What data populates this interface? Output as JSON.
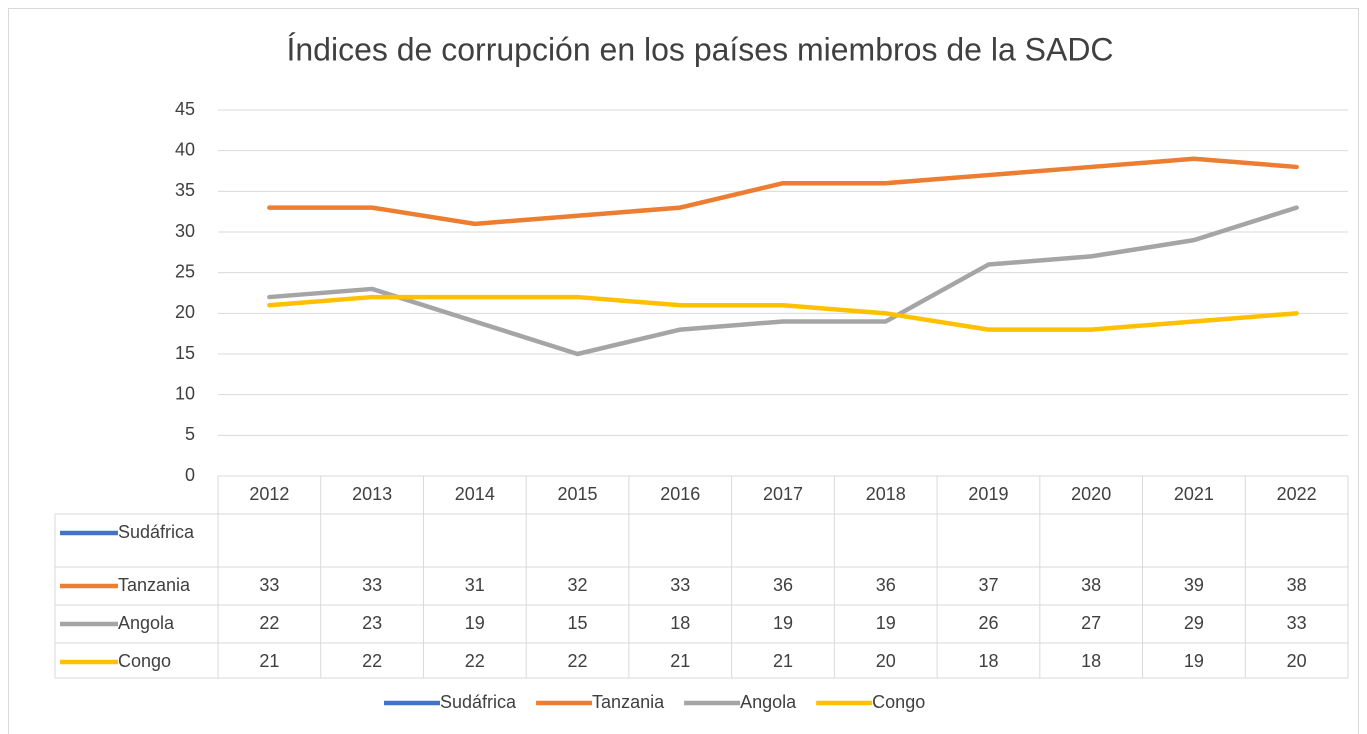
{
  "chart_data": {
    "type": "line",
    "title": "Índices de corrupción en los países miembros de la SADC",
    "categories": [
      "2012",
      "2013",
      "2014",
      "2015",
      "2016",
      "2017",
      "2018",
      "2019",
      "2020",
      "2021",
      "2022"
    ],
    "series": [
      {
        "name": "Sudáfrica",
        "color": "#4472c4",
        "values": [
          null,
          null,
          null,
          null,
          null,
          null,
          null,
          null,
          null,
          null,
          null
        ]
      },
      {
        "name": "Tanzania",
        "color": "#ed7d31",
        "values": [
          33,
          33,
          31,
          32,
          33,
          36,
          36,
          37,
          38,
          39,
          38
        ]
      },
      {
        "name": "Angola",
        "color": "#a5a5a5",
        "values": [
          22,
          23,
          19,
          15,
          18,
          19,
          19,
          26,
          27,
          29,
          33
        ]
      },
      {
        "name": "Congo",
        "color": "#ffc000",
        "values": [
          21,
          22,
          22,
          22,
          21,
          21,
          20,
          18,
          18,
          19,
          20
        ]
      }
    ],
    "ylim": [
      0,
      45
    ],
    "yticks": [
      0,
      5,
      10,
      15,
      20,
      25,
      30,
      35,
      40,
      45
    ],
    "grid": true,
    "data_table": true,
    "legend": "bottom"
  }
}
